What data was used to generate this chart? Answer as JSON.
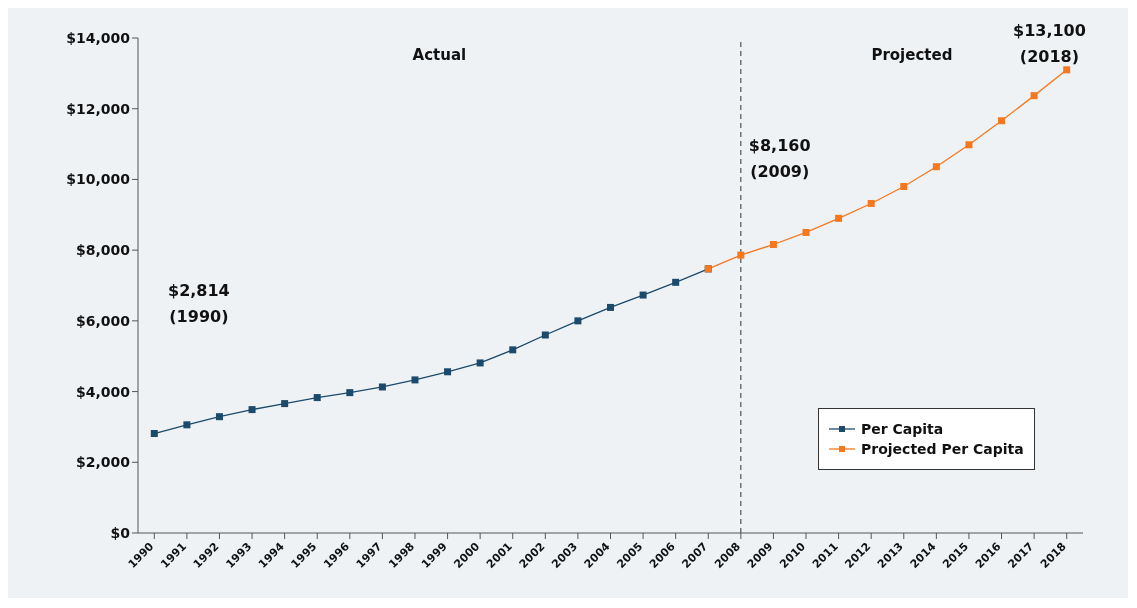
{
  "chart_data": {
    "type": "line",
    "categories": [
      "1990",
      "1991",
      "1992",
      "1993",
      "1994",
      "1995",
      "1996",
      "1997",
      "1998",
      "1999",
      "2000",
      "2001",
      "2002",
      "2003",
      "2004",
      "2005",
      "2006",
      "2007",
      "2008",
      "2009",
      "2010",
      "2011",
      "2012",
      "2013",
      "2014",
      "2015",
      "2016",
      "2017",
      "2018"
    ],
    "series": [
      {
        "name": "Per Capita",
        "color": "#1b4a6b",
        "values": [
          2814,
          3060,
          3290,
          3490,
          3660,
          3830,
          3970,
          4130,
          4330,
          4560,
          4810,
          5180,
          5600,
          6000,
          6380,
          6730,
          7090,
          7470,
          null,
          null,
          null,
          null,
          null,
          null,
          null,
          null,
          null,
          null,
          null
        ]
      },
      {
        "name": "Projected Per Capita",
        "color": "#f5781f",
        "values": [
          null,
          null,
          null,
          null,
          null,
          null,
          null,
          null,
          null,
          null,
          null,
          null,
          null,
          null,
          null,
          null,
          null,
          7470,
          7860,
          8160,
          8500,
          8900,
          9320,
          9800,
          10360,
          10980,
          11660,
          12370,
          13100
        ]
      }
    ],
    "ylim": [
      0,
      14000
    ],
    "yticks": [
      {
        "value": 0,
        "label": "$0"
      },
      {
        "value": 2000,
        "label": "$2,000"
      },
      {
        "value": 4000,
        "label": "$4,000"
      },
      {
        "value": 6000,
        "label": "$6,000"
      },
      {
        "value": 8000,
        "label": "$8,000"
      },
      {
        "value": 10000,
        "label": "$10,000"
      },
      {
        "value": 12000,
        "label": "$12,000"
      },
      {
        "value": 14000,
        "label": "$14,000"
      }
    ],
    "ref_lines": [
      {
        "axis": "x",
        "value": "2008",
        "color": "#333333",
        "line_style": "dashed"
      }
    ],
    "annotations": [
      "Actual",
      "Projected",
      "$2,814\n(1990)",
      "$8,160\n(2009)",
      "$13,100\n(2018)"
    ],
    "grid": false,
    "legend": "bottom right",
    "marker": "square",
    "line_style": "solid"
  }
}
